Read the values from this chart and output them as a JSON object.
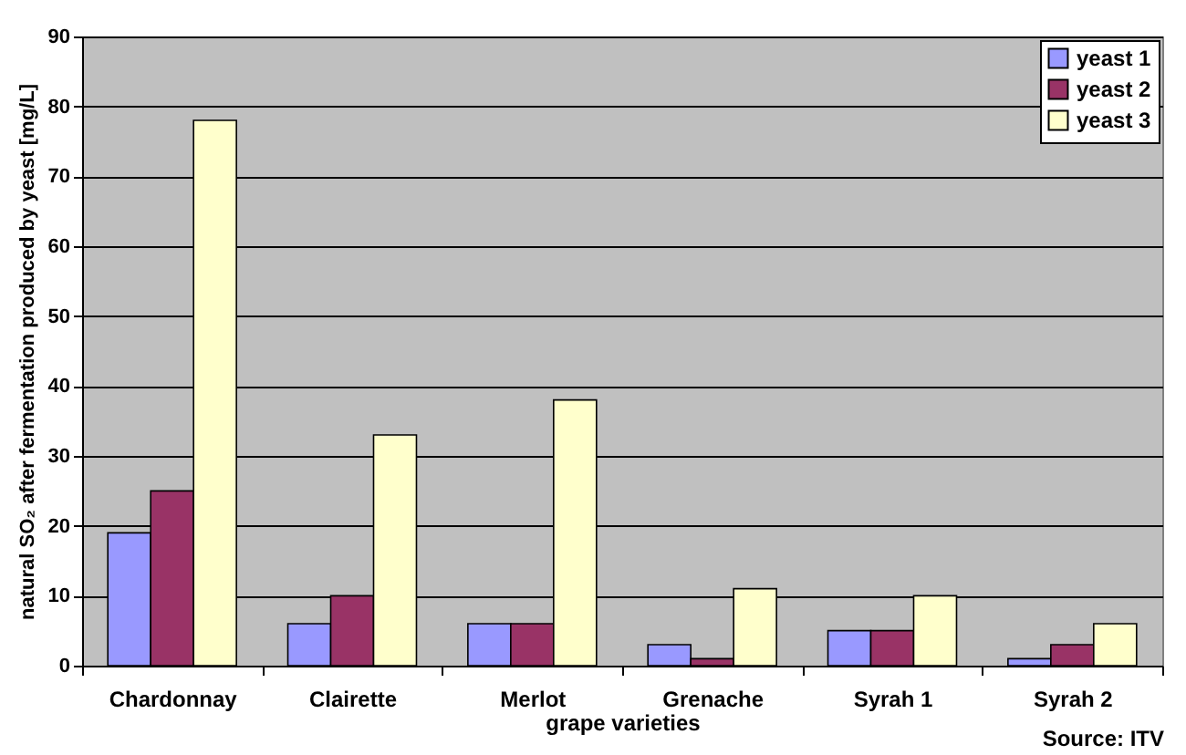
{
  "chart_data": {
    "type": "bar",
    "xlabel": "grape varieties",
    "ylabel": "natural SO₂ after fermentation produced by yeast [mg/L]",
    "categories": [
      "Chardonnay",
      "Clairette",
      "Merlot",
      "Grenache",
      "Syrah 1",
      "Syrah 2"
    ],
    "series": [
      {
        "name": "yeast 1",
        "color": "#9999ff",
        "values": [
          19,
          6,
          6,
          3,
          5,
          1
        ]
      },
      {
        "name": "yeast 2",
        "color": "#993366",
        "values": [
          25,
          10,
          6,
          1,
          5,
          3
        ]
      },
      {
        "name": "yeast 3",
        "color": "#ffffcc",
        "values": [
          78,
          33,
          38,
          11,
          10,
          6
        ]
      }
    ],
    "ylim": [
      0,
      90
    ],
    "yticks": [
      0,
      10,
      20,
      30,
      40,
      50,
      60,
      70,
      80,
      90
    ],
    "grid": "y",
    "legend": "top right",
    "annotations": [
      "Source: ITV"
    ]
  }
}
